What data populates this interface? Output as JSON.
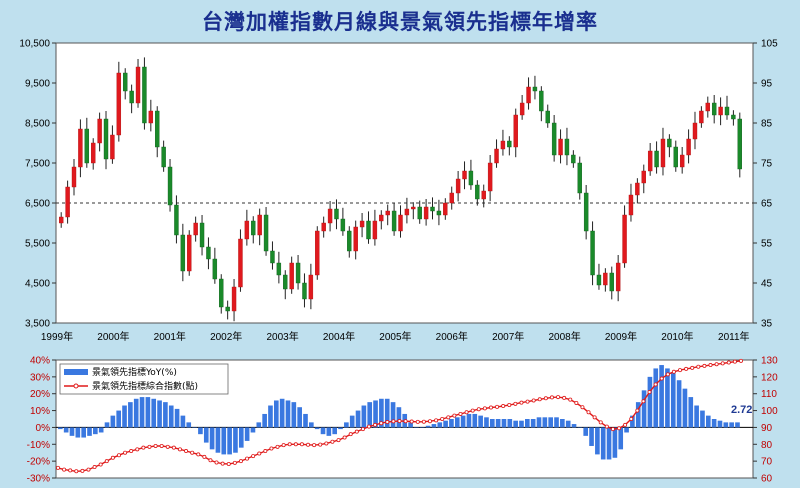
{
  "chart_data": [
    {
      "type": "candlestick",
      "title": "台灣加權指數月線與景氣領先指標年增率",
      "left_axis": {
        "ticks": [
          "10,500",
          "9,500",
          "8,500",
          "7,500",
          "6,500",
          "5,500",
          "4,500",
          "3,500"
        ],
        "values": [
          10500,
          9500,
          8500,
          7500,
          6500,
          5500,
          4500,
          3500
        ],
        "ylim": [
          3500,
          10500
        ]
      },
      "right_axis": {
        "ticks": [
          "105",
          "95",
          "85",
          "75",
          "65",
          "55",
          "45",
          "35"
        ],
        "values": [
          105,
          95,
          85,
          75,
          65,
          55,
          45,
          35
        ],
        "ylim": [
          35,
          105
        ]
      },
      "x_ticks": [
        "1999年",
        "2000年",
        "2001年",
        "2002年",
        "2003年",
        "2004年",
        "2005年",
        "2006年",
        "2007年",
        "2008年",
        "2009年",
        "2010年",
        "2011年"
      ],
      "reference_line": 6500,
      "grid": false,
      "colors": {
        "up": "#e0191e",
        "down": "#1a8a2a"
      },
      "monthly_close": [
        6150,
        6900,
        7400,
        8350,
        7500,
        8000,
        8600,
        7600,
        8200,
        9750,
        9300,
        9000,
        9900,
        8500,
        8800,
        7900,
        7400,
        6450,
        5700,
        4800,
        5700,
        6000,
        5400,
        5100,
        4600,
        3900,
        3800,
        4400,
        5600,
        6050,
        5700,
        6200,
        5300,
        5000,
        4700,
        4350,
        5000,
        4500,
        4100,
        4700,
        5800,
        6000,
        6350,
        6100,
        5800,
        5300,
        5900,
        6050,
        5600,
        6050,
        6200,
        6300,
        5800,
        6200,
        6350,
        6400,
        6100,
        6400,
        6300,
        6200,
        6500,
        6750,
        7100,
        7300,
        6950,
        6600,
        6800,
        7500,
        7850,
        8050,
        7900,
        8700,
        9000,
        9400,
        9300,
        8800,
        8500,
        7700,
        8100,
        7700,
        7500,
        6750,
        5800,
        4700,
        4450,
        4750,
        4300,
        5000,
        6200,
        6700,
        7000,
        7300,
        7800,
        7400,
        8100,
        7900,
        7400,
        7700,
        8100,
        8500,
        8800,
        9000,
        8700,
        8900,
        8700,
        8600,
        7350
      ]
    },
    {
      "type": "bar+line",
      "legend": [
        "景氣領先指標YoY(%)",
        "景氣領先指標綜合指數(點)"
      ],
      "legend_placement": "top-left",
      "left_axis": {
        "ticks": [
          "40%",
          "30%",
          "20%",
          "10%",
          "0%",
          "-10%",
          "-20%",
          "-30%"
        ],
        "values": [
          40,
          30,
          20,
          10,
          0,
          -10,
          -20,
          -30
        ],
        "ylim": [
          -30,
          40
        ]
      },
      "right_axis": {
        "ticks": [
          "130",
          "120",
          "110",
          "100",
          "90",
          "80",
          "70",
          "60"
        ],
        "values": [
          130,
          120,
          110,
          100,
          90,
          80,
          70,
          60
        ],
        "ylim": [
          60,
          130
        ]
      },
      "series": [
        {
          "name": "景氣領先指標YoY(%)",
          "kind": "bar",
          "color": "#3a78e0",
          "values": [
            -1,
            -3,
            -5,
            -6,
            -6,
            -5,
            -4,
            -3,
            3,
            7,
            10,
            13,
            15,
            17,
            18,
            18,
            17,
            16,
            15,
            13,
            11,
            7,
            3,
            0,
            -4,
            -9,
            -13,
            -15,
            -16,
            -16,
            -15,
            -12,
            -8,
            -3,
            3,
            8,
            13,
            16,
            17,
            16,
            15,
            12,
            8,
            3,
            -1,
            -4,
            -5,
            -4,
            -1,
            3,
            7,
            10,
            13,
            15,
            16,
            17,
            17,
            15,
            12,
            8,
            3,
            0,
            0,
            1,
            2,
            3,
            4,
            5,
            6,
            7,
            8,
            8,
            7,
            6,
            5,
            5,
            5,
            5,
            4,
            4,
            5,
            5,
            6,
            6,
            6,
            6,
            5,
            4,
            2,
            0,
            -5,
            -11,
            -16,
            -19,
            -19,
            -18,
            -13,
            -3,
            7,
            15,
            22,
            30,
            35,
            37,
            35,
            32,
            28,
            23,
            18,
            13,
            10,
            7,
            5,
            4,
            3,
            3,
            3
          ]
        },
        {
          "name": "景氣領先指標綜合指數(點)",
          "kind": "line",
          "color": "#e01a1a",
          "values": [
            66,
            65,
            64.5,
            64,
            64.2,
            65,
            66.5,
            68,
            70,
            72,
            73.5,
            75,
            76,
            77,
            78,
            78.5,
            79,
            79,
            78.5,
            78,
            77,
            76,
            75,
            74,
            72.5,
            70.5,
            69.2,
            68.5,
            68.3,
            69,
            70,
            71.5,
            73,
            74.5,
            76,
            77.5,
            78.5,
            79.5,
            80,
            80,
            80,
            79.7,
            79.5,
            79.8,
            80.5,
            81.5,
            82.5,
            84,
            86,
            87.5,
            89,
            90.5,
            91.5,
            92.5,
            93.2,
            93.6,
            93.8,
            93.7,
            93.5,
            93.3,
            93.4,
            93.7,
            94.2,
            95,
            96,
            97,
            98,
            99,
            100,
            100.8,
            101.3,
            101.8,
            102.2,
            102.7,
            103.3,
            104,
            104.7,
            105.3,
            106,
            106.7,
            107.3,
            107.8,
            108,
            107.5,
            106.5,
            104.5,
            102,
            99,
            96,
            93,
            90.5,
            89,
            89.5,
            91.5,
            95,
            100,
            105.5,
            111,
            115.5,
            119,
            121.5,
            123,
            124,
            124.7,
            125.3,
            126,
            126.5,
            127,
            127.5,
            128,
            128.5,
            129,
            129.5
          ]
        }
      ],
      "annotation": "2.72"
    }
  ]
}
